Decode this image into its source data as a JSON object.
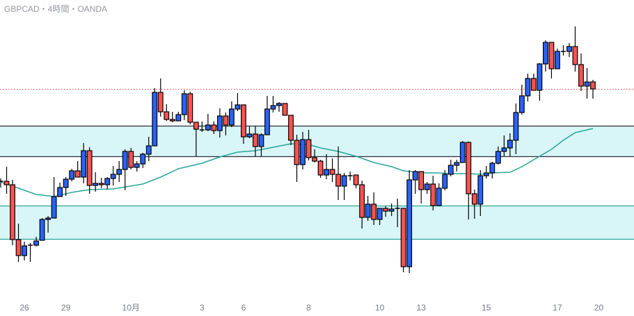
{
  "chart_data": {
    "type": "candlestick",
    "title": "GBPCAD・4時間・OANDA",
    "price_units": "relative (no price axis shown)",
    "ylim": [
      60,
      430
    ],
    "colors": {
      "up": "#2962ff",
      "down": "#ff5252",
      "outline": "#000000",
      "ma": "#26a69a",
      "zone_fill": "#d8f5f7",
      "upper_zone_border": "#2a2e39",
      "lower_zone_border": "#26a69a",
      "price_line": "#f23645"
    },
    "ohlc": [
      [
        198,
        203,
        190,
        199
      ],
      [
        199,
        220,
        181,
        194
      ],
      [
        194,
        201,
        107,
        115
      ],
      [
        115,
        138,
        83,
        92
      ],
      [
        92,
        112,
        85,
        106
      ],
      [
        107,
        110,
        83,
        107
      ],
      [
        107,
        119,
        105,
        113
      ],
      [
        114,
        146,
        114,
        144
      ],
      [
        144,
        149,
        125,
        146
      ],
      [
        146,
        205,
        146,
        177
      ],
      [
        177,
        197,
        177,
        190
      ],
      [
        190,
        205,
        178,
        202
      ],
      [
        202,
        217,
        199,
        214
      ],
      [
        214,
        228,
        205,
        205
      ],
      [
        205,
        254,
        196,
        243
      ],
      [
        243,
        248,
        181,
        193
      ],
      [
        193,
        212,
        184,
        196
      ],
      [
        196,
        204,
        189,
        194
      ],
      [
        194,
        205,
        188,
        203
      ],
      [
        203,
        221,
        193,
        209
      ],
      [
        209,
        228,
        198,
        216
      ],
      [
        216,
        245,
        186,
        242
      ],
      [
        242,
        247,
        216,
        219
      ],
      [
        219,
        228,
        213,
        224
      ],
      [
        224,
        240,
        218,
        238
      ],
      [
        238,
        263,
        228,
        250
      ],
      [
        250,
        333,
        250,
        327
      ],
      [
        327,
        347,
        292,
        299
      ],
      [
        299,
        310,
        286,
        288
      ],
      [
        288,
        299,
        284,
        286
      ],
      [
        286,
        299,
        286,
        295
      ],
      [
        295,
        330,
        287,
        325
      ],
      [
        325,
        328,
        281,
        284
      ],
      [
        284,
        284,
        235,
        274
      ],
      [
        273,
        285,
        270,
        273
      ],
      [
        273,
        296,
        271,
        280
      ],
      [
        280,
        285,
        267,
        272
      ],
      [
        272,
        304,
        262,
        293
      ],
      [
        293,
        298,
        265,
        280
      ],
      [
        280,
        314,
        277,
        303
      ],
      [
        303,
        326,
        300,
        309
      ],
      [
        309,
        309,
        253,
        263
      ],
      [
        263,
        278,
        261,
        267
      ],
      [
        267,
        278,
        235,
        249
      ],
      [
        249,
        268,
        235,
        266
      ],
      [
        266,
        322,
        266,
        303
      ],
      [
        303,
        322,
        298,
        308
      ],
      [
        308,
        313,
        299,
        311
      ],
      [
        311,
        311,
        294,
        294
      ],
      [
        294,
        294,
        251,
        258
      ],
      [
        258,
        266,
        198,
        223
      ],
      [
        223,
        270,
        216,
        259
      ],
      [
        259,
        273,
        229,
        233
      ],
      [
        233,
        245,
        226,
        228
      ],
      [
        228,
        230,
        204,
        208
      ],
      [
        208,
        238,
        202,
        216
      ],
      [
        216,
        232,
        198,
        209
      ],
      [
        209,
        249,
        172,
        192
      ],
      [
        192,
        211,
        172,
        207
      ],
      [
        207,
        213,
        200,
        207
      ],
      [
        208,
        208,
        189,
        194
      ],
      [
        194,
        200,
        131,
        147
      ],
      [
        147,
        178,
        142,
        166
      ],
      [
        166,
        183,
        136,
        144
      ],
      [
        144,
        160,
        136,
        160
      ],
      [
        160,
        163,
        148,
        156
      ],
      [
        156,
        167,
        149,
        159
      ],
      [
        160,
        174,
        133,
        160
      ],
      [
        160,
        160,
        68,
        76
      ],
      [
        76,
        215,
        67,
        201
      ],
      [
        201,
        215,
        181,
        213
      ],
      [
        213,
        213,
        167,
        187
      ],
      [
        187,
        198,
        181,
        195
      ],
      [
        195,
        207,
        157,
        164
      ],
      [
        164,
        196,
        163,
        189
      ],
      [
        189,
        215,
        186,
        209
      ],
      [
        209,
        230,
        206,
        222
      ],
      [
        222,
        230,
        213,
        226
      ],
      [
        226,
        257,
        226,
        255
      ],
      [
        255,
        256,
        144,
        181
      ],
      [
        181,
        187,
        145,
        166
      ],
      [
        166,
        215,
        149,
        207
      ],
      [
        207,
        221,
        203,
        211
      ],
      [
        211,
        227,
        203,
        225
      ],
      [
        225,
        249,
        223,
        242
      ],
      [
        242,
        265,
        235,
        247
      ],
      [
        247,
        268,
        235,
        258
      ],
      [
        258,
        311,
        238,
        298
      ],
      [
        298,
        338,
        295,
        322
      ],
      [
        322,
        354,
        314,
        347
      ],
      [
        347,
        354,
        330,
        330
      ],
      [
        330,
        369,
        315,
        368
      ],
      [
        368,
        402,
        357,
        399
      ],
      [
        399,
        399,
        347,
        361
      ],
      [
        361,
        390,
        361,
        386
      ],
      [
        386,
        395,
        380,
        386
      ],
      [
        386,
        398,
        378,
        393
      ],
      [
        393,
        422,
        357,
        367
      ],
      [
        367,
        383,
        329,
        336
      ],
      [
        336,
        362,
        318,
        342
      ],
      [
        342,
        345,
        318,
        332
      ]
    ],
    "moving_average": [
      [
        0,
        198
      ],
      [
        2,
        192
      ],
      [
        6,
        180
      ],
      [
        9,
        177
      ],
      [
        12,
        183
      ],
      [
        15,
        187
      ],
      [
        19,
        188
      ],
      [
        24,
        195
      ],
      [
        27,
        205
      ],
      [
        30,
        217
      ],
      [
        34,
        225
      ],
      [
        37,
        234
      ],
      [
        40,
        241
      ],
      [
        43,
        243
      ],
      [
        46,
        248
      ],
      [
        49,
        253
      ],
      [
        52,
        252
      ],
      [
        54,
        247
      ],
      [
        57,
        242
      ],
      [
        60,
        235
      ],
      [
        63,
        226
      ],
      [
        66,
        220
      ],
      [
        68,
        214
      ],
      [
        69,
        213
      ],
      [
        72,
        211
      ],
      [
        74,
        211
      ],
      [
        76,
        210
      ],
      [
        79,
        210
      ],
      [
        81,
        209
      ],
      [
        83,
        211
      ],
      [
        86,
        212
      ],
      [
        88,
        220
      ],
      [
        90,
        230
      ],
      [
        93,
        245
      ],
      [
        95,
        258
      ],
      [
        97,
        269
      ],
      [
        100,
        275
      ]
    ],
    "zones": [
      {
        "name": "upper-zone",
        "top": 279,
        "bottom": 235
      },
      {
        "name": "lower-zone",
        "top": 164,
        "bottom": 116
      }
    ],
    "current_price": 332,
    "x_ticks": [
      {
        "index": 4,
        "label": "26"
      },
      {
        "index": 11,
        "label": "29"
      },
      {
        "index": 22,
        "label": "10月"
      },
      {
        "index": 34,
        "label": "3"
      },
      {
        "index": 41,
        "label": "6"
      },
      {
        "index": 52,
        "label": "8"
      },
      {
        "index": 64,
        "label": "10"
      },
      {
        "index": 71,
        "label": "13"
      },
      {
        "index": 82,
        "label": "15"
      },
      {
        "index": 94,
        "label": "17"
      },
      {
        "index": 101,
        "label": "20"
      }
    ]
  }
}
